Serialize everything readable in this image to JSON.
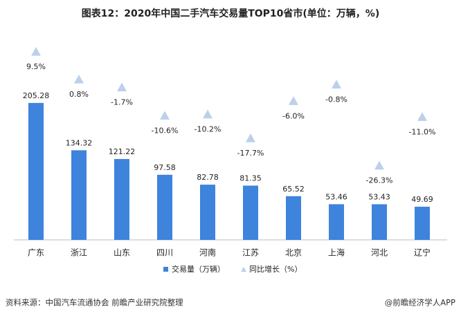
{
  "chart_data": {
    "type": "bar",
    "title": "图表12：2020年中国二手汽车交易量TOP10省市(单位：万辆，%)",
    "categories": [
      "广东",
      "浙江",
      "山东",
      "四川",
      "河南",
      "江苏",
      "北京",
      "上海",
      "河北",
      "辽宁"
    ],
    "series": [
      {
        "name": "交易量（万辆）",
        "type": "bar",
        "color": "#3e83dc",
        "values": [
          205.28,
          134.32,
          121.22,
          97.58,
          82.78,
          81.35,
          65.52,
          53.46,
          53.43,
          49.69
        ]
      },
      {
        "name": "同比增长（%）",
        "type": "scatter",
        "axis": "y2",
        "color": "#bcd0ea",
        "values": [
          9.5,
          0.8,
          -1.7,
          -10.6,
          -10.2,
          -17.7,
          -6.0,
          -0.8,
          -26.3,
          -11.0
        ],
        "value_labels": [
          "9.5%",
          "0.8%",
          "-1.7%",
          "-10.6%",
          "-10.2%",
          "-17.7%",
          "-6.0%",
          "-0.8%",
          "-26.3%",
          "-11.0%"
        ]
      }
    ],
    "source": "资料来源：中国汽车流通协会 前瞻产业研究院整理",
    "credit": "@前瞻经济学人APP"
  }
}
